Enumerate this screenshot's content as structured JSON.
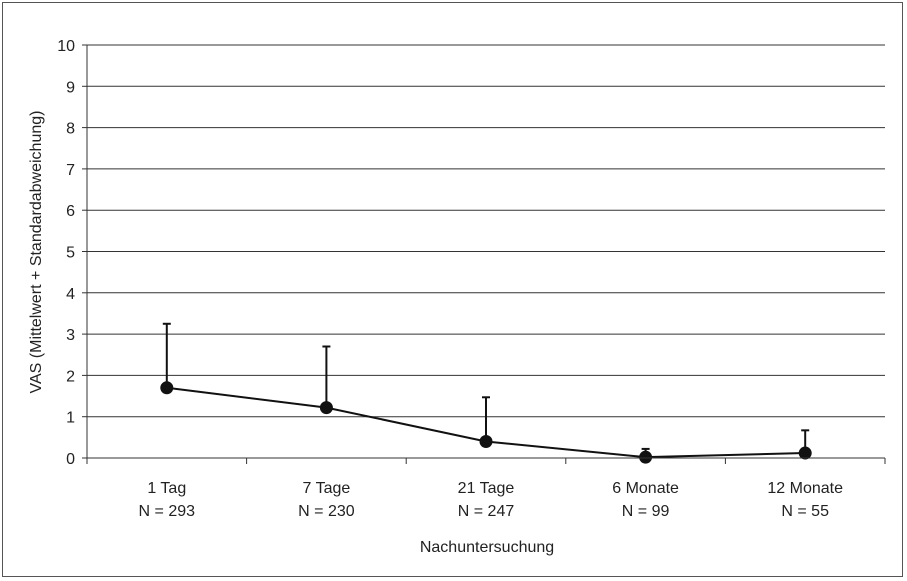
{
  "chart_data": {
    "type": "line",
    "title": "",
    "xlabel": "Nachuntersuchung",
    "ylabel": "VAS (Mittelwert + Standardabweichung)",
    "ylim": [
      0,
      10
    ],
    "yticks": [
      "0",
      "1",
      "2",
      "3",
      "4",
      "5",
      "6",
      "7",
      "8",
      "9",
      "10"
    ],
    "grid": true,
    "legend": "none",
    "categories": [
      {
        "label": "1 Tag",
        "n_label": "N = 293"
      },
      {
        "label": "7 Tage",
        "n_label": "N = 230"
      },
      {
        "label": "21 Tage",
        "n_label": "N = 247"
      },
      {
        "label": "6 Monate",
        "n_label": "N = 99"
      },
      {
        "label": "12 Monate",
        "n_label": "N = 55"
      }
    ],
    "series": [
      {
        "values": [
          1.7,
          1.22,
          0.4,
          0.02,
          0.12
        ],
        "error_upper": [
          1.55,
          1.48,
          1.07,
          0.2,
          0.55
        ],
        "color": "#111111",
        "marker": "circle"
      }
    ]
  }
}
